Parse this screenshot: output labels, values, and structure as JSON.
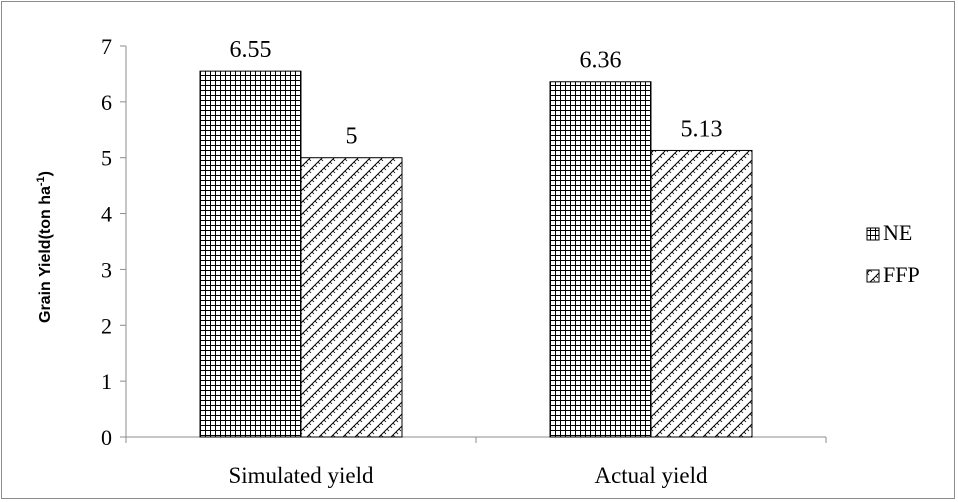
{
  "chart_data": {
    "type": "bar",
    "categories": [
      "Simulated yield",
      "Actual yield"
    ],
    "series": [
      {
        "name": "NE",
        "values": [
          6.55,
          6.36
        ],
        "labels": [
          "6.55",
          "6.36"
        ],
        "pattern": "grid"
      },
      {
        "name": "FFP",
        "values": [
          5,
          5.13
        ],
        "labels": [
          "5",
          "5.13"
        ],
        "pattern": "diagonal"
      }
    ],
    "ylabel_main": "Grain Yield(ton ha",
    "ylabel_sup": "-1",
    "ylabel_end": ")",
    "ylim": [
      0,
      7
    ],
    "yticks": [
      "0",
      "1",
      "2",
      "3",
      "4",
      "5",
      "6",
      "7"
    ],
    "grid": false,
    "legend": "right"
  }
}
